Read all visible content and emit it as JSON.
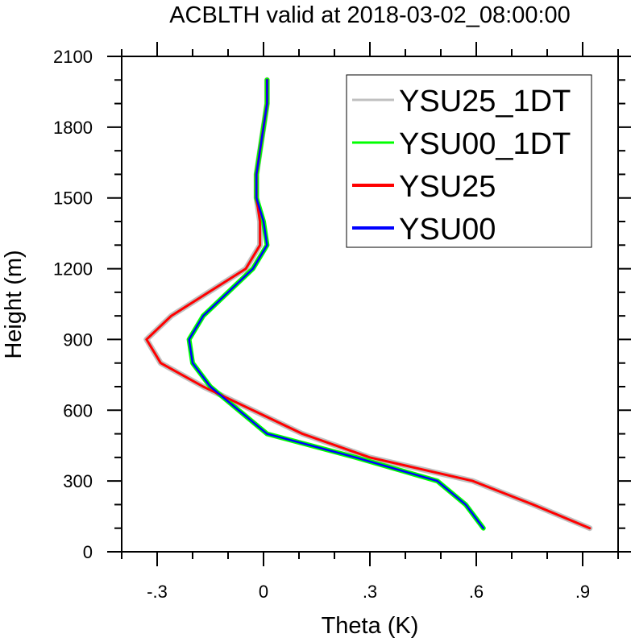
{
  "chart_data": {
    "type": "line",
    "title": "ACBLTH valid at 2018-03-02_08:00:00",
    "xlabel": "Theta (K)",
    "ylabel": "Height (m)",
    "xlim": [
      -0.4,
      1.0
    ],
    "ylim": [
      0,
      2100
    ],
    "x_ticks": [
      -0.3,
      0,
      0.3,
      0.6,
      0.9
    ],
    "x_tick_labels": [
      "-.3",
      "0",
      ".3",
      ".6",
      ".9"
    ],
    "y_ticks": [
      0,
      300,
      600,
      900,
      1200,
      1500,
      1800,
      2100
    ],
    "y_tick_labels": [
      "0",
      "300",
      "600",
      "900",
      "1200",
      "1500",
      "1800",
      "2100"
    ],
    "legend_position": "top-right",
    "series": [
      {
        "name": "YSU25_1DT",
        "color": "#c0c0c0",
        "points": [
          [
            0.92,
            100
          ],
          [
            0.76,
            200
          ],
          [
            0.59,
            300
          ],
          [
            0.3,
            400
          ],
          [
            0.11,
            500
          ],
          [
            -0.03,
            600
          ],
          [
            -0.17,
            700
          ],
          [
            -0.29,
            800
          ],
          [
            -0.33,
            900
          ],
          [
            -0.26,
            1000
          ],
          [
            -0.05,
            1200
          ],
          [
            -0.01,
            1300
          ],
          [
            -0.01,
            1400
          ],
          [
            -0.02,
            1500
          ],
          [
            -0.02,
            1600
          ],
          [
            -0.01,
            1700
          ],
          [
            0,
            1800
          ],
          [
            0.01,
            1900
          ],
          [
            0.01,
            2000
          ]
        ]
      },
      {
        "name": "YSU00_1DT",
        "color": "#00ff00",
        "points": [
          [
            0.62,
            100
          ],
          [
            0.57,
            200
          ],
          [
            0.49,
            300
          ],
          [
            0.26,
            400
          ],
          [
            0.01,
            500
          ],
          [
            -0.07,
            600
          ],
          [
            -0.15,
            700
          ],
          [
            -0.2,
            800
          ],
          [
            -0.21,
            900
          ],
          [
            -0.17,
            1000
          ],
          [
            -0.03,
            1200
          ],
          [
            0.01,
            1300
          ],
          [
            0,
            1400
          ],
          [
            -0.02,
            1500
          ],
          [
            -0.02,
            1600
          ],
          [
            -0.01,
            1700
          ],
          [
            0,
            1800
          ],
          [
            0.01,
            1900
          ],
          [
            0.01,
            2000
          ]
        ]
      },
      {
        "name": "YSU25",
        "color": "#ff0000",
        "points": [
          [
            0.92,
            100
          ],
          [
            0.76,
            200
          ],
          [
            0.59,
            300
          ],
          [
            0.3,
            400
          ],
          [
            0.11,
            500
          ],
          [
            -0.03,
            600
          ],
          [
            -0.17,
            700
          ],
          [
            -0.29,
            800
          ],
          [
            -0.33,
            900
          ],
          [
            -0.26,
            1000
          ],
          [
            -0.05,
            1200
          ],
          [
            -0.01,
            1300
          ],
          [
            -0.01,
            1400
          ],
          [
            -0.02,
            1500
          ],
          [
            -0.02,
            1600
          ],
          [
            -0.01,
            1700
          ],
          [
            0,
            1800
          ],
          [
            0.01,
            1900
          ],
          [
            0.01,
            2000
          ]
        ]
      },
      {
        "name": "YSU00",
        "color": "#0000ff",
        "points": [
          [
            0.62,
            100
          ],
          [
            0.57,
            200
          ],
          [
            0.49,
            300
          ],
          [
            0.26,
            400
          ],
          [
            0.01,
            500
          ],
          [
            -0.07,
            600
          ],
          [
            -0.15,
            700
          ],
          [
            -0.2,
            800
          ],
          [
            -0.21,
            900
          ],
          [
            -0.17,
            1000
          ],
          [
            -0.03,
            1200
          ],
          [
            0.01,
            1300
          ],
          [
            0,
            1400
          ],
          [
            -0.02,
            1500
          ],
          [
            -0.02,
            1600
          ],
          [
            -0.01,
            1700
          ],
          [
            0,
            1800
          ],
          [
            0.01,
            1900
          ],
          [
            0.01,
            2000
          ]
        ]
      }
    ]
  }
}
